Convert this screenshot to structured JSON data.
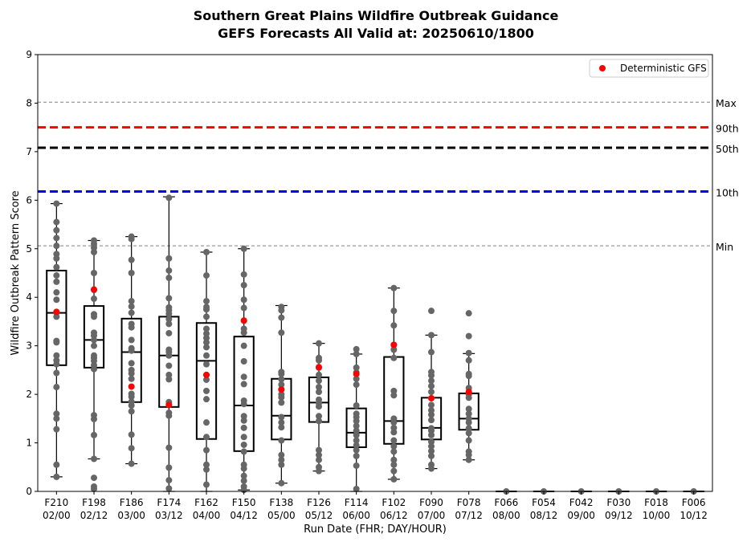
{
  "chart_data": {
    "type": "box",
    "title_line1": "Southern Great Plains Wildfire Outbreak Guidance",
    "title_line2": "GEFS Forecasts All Valid at: 20250610/1800",
    "xlabel": "Run Date (FHR; DAY/HOUR)",
    "ylabel": "Wildfire Outbreak Pattern Score",
    "ylim": [
      0,
      9
    ],
    "yticks": [
      "0",
      "1",
      "2",
      "3",
      "4",
      "5",
      "6",
      "7",
      "8",
      "9"
    ],
    "categories": [
      {
        "fhr": "F210",
        "date": "02/00"
      },
      {
        "fhr": "F198",
        "date": "02/12"
      },
      {
        "fhr": "F186",
        "date": "03/00"
      },
      {
        "fhr": "F174",
        "date": "03/12"
      },
      {
        "fhr": "F162",
        "date": "04/00"
      },
      {
        "fhr": "F150",
        "date": "04/12"
      },
      {
        "fhr": "F138",
        "date": "05/00"
      },
      {
        "fhr": "F126",
        "date": "05/12"
      },
      {
        "fhr": "F114",
        "date": "06/00"
      },
      {
        "fhr": "F102",
        "date": "06/12"
      },
      {
        "fhr": "F090",
        "date": "07/00"
      },
      {
        "fhr": "F078",
        "date": "07/12"
      },
      {
        "fhr": "F066",
        "date": "08/00"
      },
      {
        "fhr": "F054",
        "date": "08/12"
      },
      {
        "fhr": "F042",
        "date": "09/00"
      },
      {
        "fhr": "F030",
        "date": "09/12"
      },
      {
        "fhr": "F018",
        "date": "10/00"
      },
      {
        "fhr": "F006",
        "date": "10/12"
      }
    ],
    "boxes": [
      {
        "q1": 2.6,
        "median": 3.68,
        "q3": 4.55,
        "whisker_low": 0.3,
        "whisker_high": 5.93
      },
      {
        "q1": 2.55,
        "median": 3.12,
        "q3": 3.82,
        "whisker_low": 0.67,
        "whisker_high": 5.17
      },
      {
        "q1": 1.84,
        "median": 2.87,
        "q3": 3.56,
        "whisker_low": 0.57,
        "whisker_high": 5.25
      },
      {
        "q1": 1.74,
        "median": 2.8,
        "q3": 3.6,
        "whisker_low": 0.0,
        "whisker_high": 6.07
      },
      {
        "q1": 1.08,
        "median": 2.69,
        "q3": 3.47,
        "whisker_low": 0.0,
        "whisker_high": 4.93
      },
      {
        "q1": 0.83,
        "median": 1.77,
        "q3": 3.19,
        "whisker_low": 0.03,
        "whisker_high": 5.0
      },
      {
        "q1": 1.07,
        "median": 1.56,
        "q3": 2.32,
        "whisker_low": 0.17,
        "whisker_high": 3.83
      },
      {
        "q1": 1.43,
        "median": 1.83,
        "q3": 2.35,
        "whisker_low": 0.42,
        "whisker_high": 3.05
      },
      {
        "q1": 0.91,
        "median": 1.21,
        "q3": 1.71,
        "whisker_low": 0.0,
        "whisker_high": 2.83
      },
      {
        "q1": 0.98,
        "median": 1.45,
        "q3": 2.77,
        "whisker_low": 0.25,
        "whisker_high": 4.19
      },
      {
        "q1": 1.07,
        "median": 1.31,
        "q3": 1.93,
        "whisker_low": 0.47,
        "whisker_high": 3.22
      },
      {
        "q1": 1.27,
        "median": 1.5,
        "q3": 2.02,
        "whisker_low": 0.65,
        "whisker_high": 2.84
      },
      {
        "q1": 0.0,
        "median": 0.0,
        "q3": 0.0,
        "whisker_low": 0.0,
        "whisker_high": 0.0
      },
      {
        "q1": 0.0,
        "median": 0.0,
        "q3": 0.0,
        "whisker_low": 0.0,
        "whisker_high": 0.0
      },
      {
        "q1": 0.0,
        "median": 0.0,
        "q3": 0.0,
        "whisker_low": 0.0,
        "whisker_high": 0.0
      },
      {
        "q1": 0.0,
        "median": 0.0,
        "q3": 0.0,
        "whisker_low": 0.0,
        "whisker_high": 0.0
      },
      {
        "q1": 0.0,
        "median": 0.0,
        "q3": 0.0,
        "whisker_low": 0.0,
        "whisker_high": 0.0
      },
      {
        "q1": 0.0,
        "median": 0.0,
        "q3": 0.0,
        "whisker_low": 0.0,
        "whisker_high": 0.0
      }
    ],
    "members": [
      [
        0.3,
        0.55,
        1.28,
        1.5,
        1.6,
        2.15,
        2.44,
        2.62,
        2.7,
        2.8,
        3.07,
        3.1,
        3.6,
        3.68,
        3.95,
        4.1,
        4.32,
        4.45,
        4.62,
        4.8,
        4.89,
        5.06,
        5.22,
        5.38,
        5.55,
        5.93
      ],
      [
        0.05,
        0.1,
        0.28,
        0.67,
        1.16,
        1.49,
        1.57,
        2.52,
        2.6,
        2.69,
        2.75,
        2.8,
        3.0,
        3.12,
        3.21,
        3.27,
        3.6,
        3.65,
        3.97,
        4.15,
        4.5,
        4.93,
        5.02,
        5.1,
        5.17
      ],
      [
        0.57,
        0.89,
        1.17,
        1.65,
        1.77,
        1.85,
        1.95,
        2.01,
        2.32,
        2.43,
        2.5,
        2.64,
        2.9,
        2.95,
        3.12,
        3.38,
        3.45,
        3.68,
        3.81,
        3.92,
        4.5,
        4.77,
        5.2,
        5.25
      ],
      [
        0.06,
        0.23,
        0.49,
        0.9,
        1.56,
        1.62,
        1.79,
        1.84,
        2.31,
        2.4,
        2.59,
        2.8,
        2.87,
        2.92,
        3.26,
        3.45,
        3.55,
        3.66,
        3.73,
        3.79,
        3.98,
        4.4,
        4.55,
        4.8,
        6.05
      ],
      [
        0.14,
        0.45,
        0.55,
        0.85,
        1.12,
        1.42,
        1.9,
        2.07,
        2.3,
        2.4,
        2.62,
        2.8,
        2.97,
        3.07,
        3.16,
        3.25,
        3.35,
        3.6,
        3.75,
        3.8,
        3.92,
        4.45,
        4.93
      ],
      [
        0.03,
        0.1,
        0.22,
        0.32,
        0.47,
        0.55,
        0.82,
        0.96,
        1.12,
        1.31,
        1.46,
        1.55,
        1.8,
        1.87,
        2.21,
        2.36,
        2.68,
        3.0,
        3.27,
        3.35,
        3.52,
        3.78,
        3.95,
        4.25,
        4.47,
        5.0
      ],
      [
        0.17,
        0.55,
        0.65,
        0.75,
        1.05,
        1.32,
        1.42,
        1.53,
        1.83,
        1.94,
        2.0,
        2.1,
        2.2,
        2.31,
        2.42,
        2.46,
        3.27,
        3.58,
        3.73,
        3.8
      ],
      [
        0.42,
        0.5,
        0.65,
        0.75,
        0.85,
        1.45,
        1.55,
        1.75,
        1.82,
        1.89,
        2.05,
        2.15,
        2.28,
        2.4,
        2.55,
        2.7,
        2.75,
        3.05
      ],
      [
        0.05,
        0.53,
        0.73,
        0.85,
        0.95,
        1.05,
        1.16,
        1.25,
        1.35,
        1.45,
        1.53,
        1.6,
        1.77,
        2.2,
        2.32,
        2.45,
        2.55,
        2.83,
        2.93
      ],
      [
        0.25,
        0.42,
        0.55,
        0.65,
        0.82,
        0.93,
        1.05,
        1.22,
        1.31,
        1.42,
        1.5,
        1.98,
        2.07,
        2.75,
        2.92,
        3.02,
        3.42,
        3.72,
        4.19
      ],
      [
        0.47,
        0.55,
        0.73,
        0.83,
        0.93,
        1.02,
        1.16,
        1.25,
        1.3,
        1.47,
        1.58,
        1.67,
        1.78,
        1.92,
        2.05,
        2.17,
        2.28,
        2.39,
        2.46,
        2.87,
        3.22,
        3.72
      ],
      [
        0.65,
        0.75,
        0.82,
        1.05,
        1.2,
        1.3,
        1.42,
        1.5,
        1.6,
        1.7,
        1.93,
        2.0,
        2.13,
        2.38,
        2.42,
        2.7,
        2.85,
        3.2,
        3.67
      ],
      [
        0.0
      ],
      [
        0.0
      ],
      [
        0.0
      ],
      [
        0.0
      ],
      [
        0.0
      ],
      [
        0.0
      ]
    ],
    "deterministic": [
      3.7,
      4.16,
      2.16,
      1.78,
      2.4,
      3.52,
      2.1,
      2.56,
      2.42,
      3.02,
      1.92,
      2.05,
      null,
      null,
      null,
      null,
      null,
      null
    ],
    "reference_lines": [
      {
        "label": "Max",
        "value": 8.02,
        "color": "#808080",
        "style": "thin-dashed"
      },
      {
        "label": "90th",
        "value": 7.5,
        "color": "#ff0000",
        "style": "thick-dashed"
      },
      {
        "label": "50th",
        "value": 7.08,
        "color": "#000000",
        "style": "thick-dashed"
      },
      {
        "label": "10th",
        "value": 6.18,
        "color": "#0000ff",
        "style": "thick-dashed"
      },
      {
        "label": "Min",
        "value": 5.06,
        "color": "#808080",
        "style": "thin-dashed"
      }
    ],
    "legend": {
      "label": "Deterministic GFS",
      "placement": "top-right",
      "marker_color": "#ff0000"
    },
    "member_color": "#666666",
    "deterministic_color": "#ff0000",
    "grid": false
  }
}
